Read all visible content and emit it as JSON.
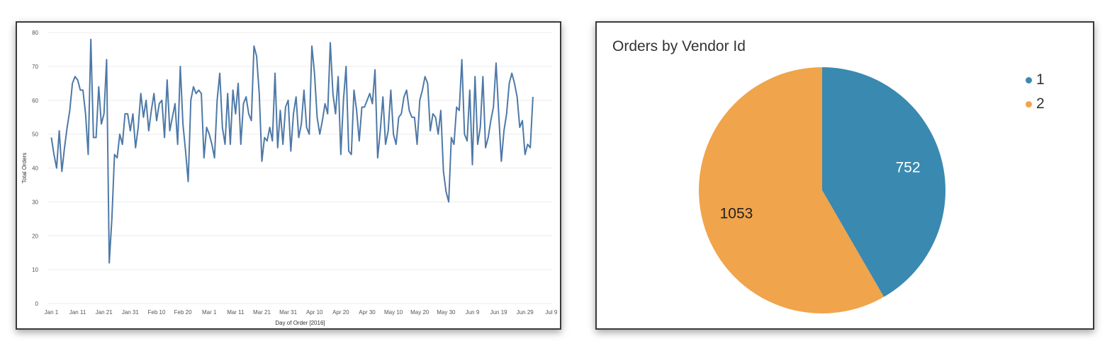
{
  "chart_data": [
    {
      "type": "line",
      "title": "",
      "xlabel": "Day of Order [2016]",
      "ylabel": "Total Orders",
      "ylim": [
        0,
        80
      ],
      "yticks": [
        0,
        10,
        20,
        30,
        40,
        50,
        60,
        70,
        80
      ],
      "xlim": [
        "2016-01-01",
        "2016-07-09"
      ],
      "xticks": [
        {
          "date": "2016-01-01",
          "label": "Jan 1"
        },
        {
          "date": "2016-01-11",
          "label": "Jan 11"
        },
        {
          "date": "2016-01-21",
          "label": "Jan 21"
        },
        {
          "date": "2016-01-31",
          "label": "Jan 31"
        },
        {
          "date": "2016-02-10",
          "label": "Feb 10"
        },
        {
          "date": "2016-02-20",
          "label": "Feb 20"
        },
        {
          "date": "2016-03-01",
          "label": "Mar 1"
        },
        {
          "date": "2016-03-11",
          "label": "Mar 11"
        },
        {
          "date": "2016-03-21",
          "label": "Mar 21"
        },
        {
          "date": "2016-03-31",
          "label": "Mar 31"
        },
        {
          "date": "2016-04-10",
          "label": "Apr 10"
        },
        {
          "date": "2016-04-20",
          "label": "Apr 20"
        },
        {
          "date": "2016-04-30",
          "label": "Apr 30"
        },
        {
          "date": "2016-05-10",
          "label": "May 10"
        },
        {
          "date": "2016-05-20",
          "label": "May 20"
        },
        {
          "date": "2016-05-30",
          "label": "May 30"
        },
        {
          "date": "2016-06-09",
          "label": "Jun 9"
        },
        {
          "date": "2016-06-19",
          "label": "Jun 19"
        },
        {
          "date": "2016-06-29",
          "label": "Jun 29"
        },
        {
          "date": "2016-07-09",
          "label": "Jul 9"
        }
      ],
      "grid": true,
      "line_color": "#4e79a7",
      "start_date": "2016-01-01",
      "values": [
        49,
        44,
        40,
        51,
        39,
        46,
        52,
        57,
        65,
        67,
        66,
        63,
        63,
        56,
        44,
        78,
        49,
        49,
        64,
        53,
        56,
        72,
        12,
        25,
        44,
        43,
        50,
        47,
        56,
        56,
        51,
        56,
        46,
        52,
        62,
        55,
        60,
        51,
        57,
        62,
        54,
        59,
        60,
        49,
        66,
        51,
        55,
        59,
        47,
        70,
        53,
        45,
        36,
        60,
        64,
        62,
        63,
        62,
        43,
        52,
        50,
        47,
        43,
        60,
        68,
        52,
        47,
        62,
        47,
        63,
        56,
        65,
        47,
        59,
        61,
        56,
        54,
        76,
        73,
        62,
        42,
        49,
        48,
        52,
        48,
        68,
        46,
        57,
        47,
        58,
        60,
        45,
        56,
        61,
        49,
        53,
        63,
        52,
        50,
        76,
        68,
        55,
        50,
        54,
        59,
        56,
        77,
        62,
        56,
        67,
        44,
        60,
        70,
        45,
        44,
        63,
        57,
        48,
        58,
        58,
        60,
        62,
        59,
        69,
        43,
        51,
        61,
        47,
        51,
        63,
        50,
        47,
        55,
        56,
        61,
        63,
        57,
        55,
        55,
        47,
        60,
        63,
        67,
        65,
        51,
        56,
        55,
        50,
        57,
        39,
        33,
        30,
        49,
        47,
        58,
        57,
        72,
        50,
        48,
        63,
        41,
        67,
        47,
        52,
        67,
        46,
        49,
        54,
        58,
        71,
        56,
        42,
        51,
        56,
        65,
        68,
        65,
        61,
        52,
        54,
        44,
        47,
        46,
        61
      ]
    },
    {
      "type": "pie",
      "title": "Orders by Vendor Id",
      "categories": [
        "1",
        "2"
      ],
      "values": [
        752,
        1053
      ],
      "colors": [
        "#3a89b0",
        "#f0a44b"
      ],
      "label_colors": [
        "#ffffff",
        "#222222"
      ],
      "legend_position": "top-right"
    }
  ]
}
